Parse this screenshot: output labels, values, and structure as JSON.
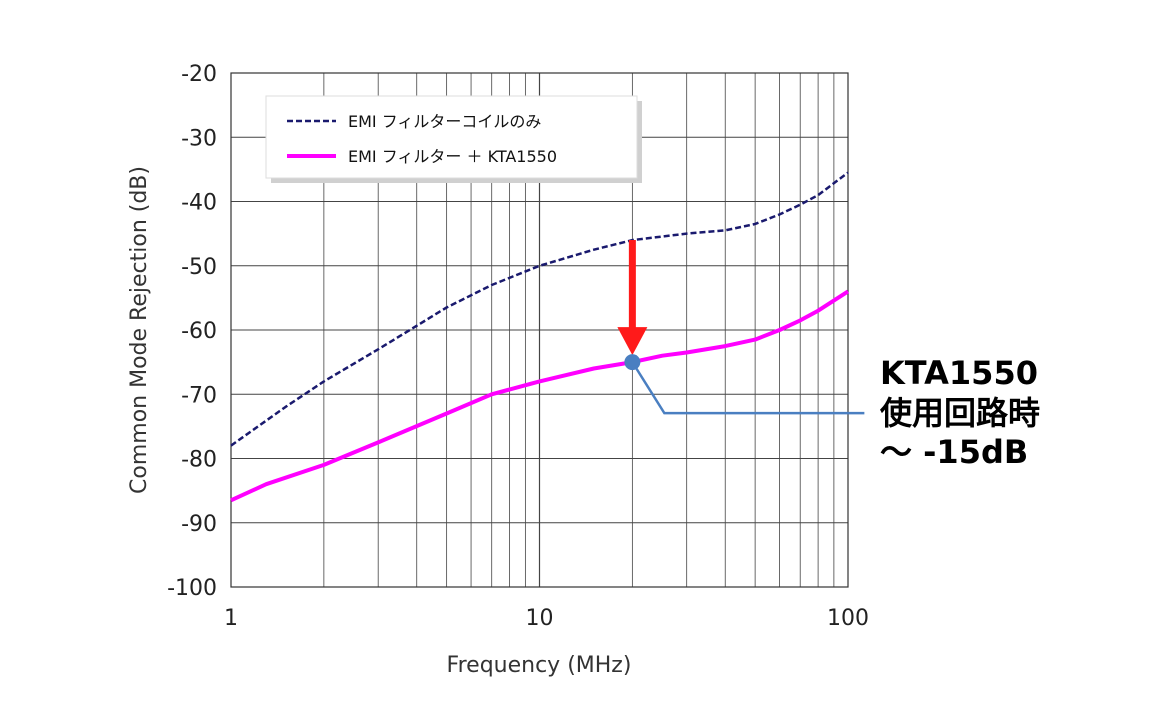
{
  "chart_data": {
    "type": "line",
    "xscale": "log",
    "xlabel": "Frequency (MHz)",
    "ylabel": "Common Mode Rejection (dB)",
    "xlim": [
      1,
      100
    ],
    "ylim": [
      -100,
      -20
    ],
    "xticks": [
      "1",
      "10",
      "100"
    ],
    "yticks": [
      "-20",
      "-30",
      "-40",
      "-50",
      "-60",
      "-70",
      "-80",
      "-90",
      "-100"
    ],
    "grid": true,
    "legend_position": "top-left",
    "series": [
      {
        "name": "EMI フィルターコイルのみ",
        "style": "dashed",
        "color": "#1a1a6e",
        "x": [
          1,
          1.5,
          2,
          3,
          5,
          7,
          10,
          15,
          20,
          30,
          40,
          50,
          60,
          70,
          80,
          100
        ],
        "y": [
          -78,
          -72,
          -68,
          -63,
          -56.5,
          -53,
          -50,
          -47.5,
          -46,
          -45,
          -44.5,
          -43.5,
          -42,
          -40.5,
          -39,
          -35.5
        ]
      },
      {
        "name": "EMI フィルター ＋ KTA1550",
        "style": "solid",
        "color": "#ff00ff",
        "x": [
          1,
          1.3,
          2,
          3,
          5,
          7,
          10,
          15,
          20,
          25,
          30,
          40,
          50,
          60,
          70,
          80,
          100
        ],
        "y": [
          -86.5,
          -84,
          -81,
          -77.5,
          -73,
          -70,
          -68,
          -66,
          -65,
          -64,
          -63.5,
          -62.5,
          -61.5,
          -60,
          -58.5,
          -57,
          -54
        ]
      }
    ],
    "annotation": {
      "x": 20,
      "from_y": -46,
      "to_y": -65,
      "arrow_color": "#ff1a1a",
      "marker_color": "#4a7fc1",
      "leader_color": "#4a7fc1",
      "lines": [
        "KTA1550",
        "使用回路時",
        "～ -15dB"
      ]
    }
  }
}
